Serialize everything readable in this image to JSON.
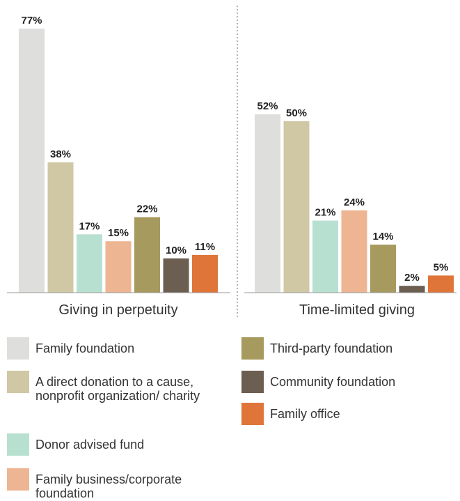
{
  "chart_data": {
    "type": "bar",
    "groups": [
      "Giving in perpetuity",
      "Time-limited giving"
    ],
    "series": [
      {
        "name": "Family foundation",
        "values": [
          77,
          52
        ],
        "color": "#dededc"
      },
      {
        "name": "A direct donation to a cause, nonprofit organization/ charity",
        "values": [
          38,
          50
        ],
        "color": "#d0c8a4"
      },
      {
        "name": "Donor advised fund",
        "values": [
          17,
          21
        ],
        "color": "#b8e0d0"
      },
      {
        "name": "Family business/corporate foundation",
        "values": [
          15,
          24
        ],
        "color": "#eeb593"
      },
      {
        "name": "Third-party foundation",
        "values": [
          22,
          14
        ],
        "color": "#a69a5e"
      },
      {
        "name": "Community foundation",
        "values": [
          10,
          2
        ],
        "color": "#6c5e51"
      },
      {
        "name": "Family office",
        "values": [
          11,
          5
        ],
        "color": "#df7539"
      }
    ],
    "data_labels": [
      [
        "77%",
        "38%",
        "17%",
        "15%",
        "22%",
        "10%",
        "11%"
      ],
      [
        "52%",
        "50%",
        "21%",
        "24%",
        "14%",
        "2%",
        "5%"
      ]
    ],
    "ylim": [
      0,
      77
    ],
    "grid": false,
    "legend_placement": "bottom"
  },
  "legend": {
    "items": [
      {
        "label": "Family foundation",
        "color": "#dededc"
      },
      {
        "label": "A direct donation to a cause, nonprofit organization/ charity",
        "color": "#d0c8a4"
      },
      {
        "label": "Donor advised fund",
        "color": "#b8e0d0"
      },
      {
        "label": "Family business/corporate foundation",
        "color": "#eeb593"
      },
      {
        "label": "Third-party foundation",
        "color": "#a69a5e"
      },
      {
        "label": "Community foundation",
        "color": "#6c5e51"
      },
      {
        "label": "Family office",
        "color": "#df7539"
      }
    ]
  }
}
